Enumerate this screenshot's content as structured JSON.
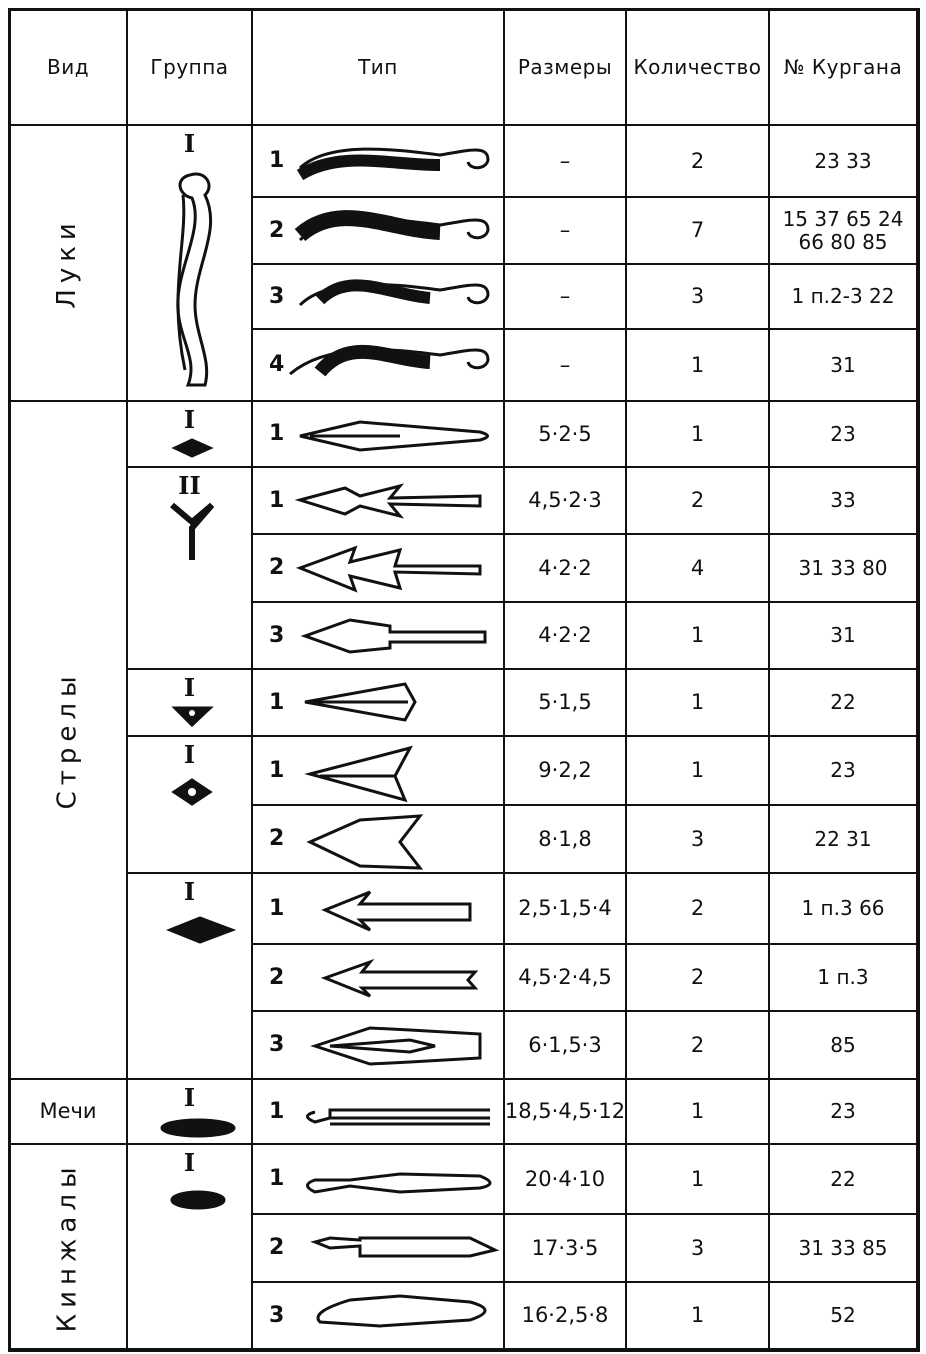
{
  "header": [
    "Вид",
    "Группа",
    "Тип",
    "Размеры",
    "Количество",
    "№ Кургана"
  ],
  "sections": [
    {
      "kind": "Луки",
      "groups": [
        {
          "label": "I",
          "types": [
            {
              "num": "1",
              "size": "–",
              "count": "2",
              "kurgan": "23 33"
            },
            {
              "num": "2",
              "size": "–",
              "count": "7",
              "kurgan": "15 37 65 24 66 80 85"
            },
            {
              "num": "3",
              "size": "–",
              "count": "3",
              "kurgan": "1 п.2-3 22"
            },
            {
              "num": "4",
              "size": "–",
              "count": "1",
              "kurgan": "31"
            }
          ]
        }
      ]
    },
    {
      "kind": "Стрелы",
      "groups": [
        {
          "label": "I",
          "types": [
            {
              "num": "1",
              "size": "5·2·5",
              "count": "1",
              "kurgan": "23"
            }
          ]
        },
        {
          "label": "II",
          "types": [
            {
              "num": "1",
              "size": "4,5·2·3",
              "count": "2",
              "kurgan": "33"
            },
            {
              "num": "2",
              "size": "4·2·2",
              "count": "4",
              "kurgan": "31 33 80"
            },
            {
              "num": "3",
              "size": "4·2·2",
              "count": "1",
              "kurgan": "31"
            }
          ]
        },
        {
          "label": "I",
          "types": [
            {
              "num": "1",
              "size": "5·1,5",
              "count": "1",
              "kurgan": "22"
            }
          ]
        },
        {
          "label": "I",
          "types": [
            {
              "num": "1",
              "size": "9·2,2",
              "count": "1",
              "kurgan": "23"
            },
            {
              "num": "2",
              "size": "8·1,8",
              "count": "3",
              "kurgan": "22 31"
            }
          ]
        },
        {
          "label": "I",
          "types": [
            {
              "num": "1",
              "size": "2,5·1,5·4",
              "count": "2",
              "kurgan": "1 п.3 66"
            },
            {
              "num": "2",
              "size": "4,5·2·4,5",
              "count": "2",
              "kurgan": "1 п.3"
            },
            {
              "num": "3",
              "size": "6·1,5·3",
              "count": "2",
              "kurgan": "85"
            }
          ]
        }
      ]
    },
    {
      "kind": "Мечи",
      "groups": [
        {
          "label": "I",
          "types": [
            {
              "num": "1",
              "size": "18,5·4,5·12",
              "count": "1",
              "kurgan": "23"
            }
          ]
        }
      ]
    },
    {
      "kind": "Кинжалы",
      "groups": [
        {
          "label": "I",
          "types": [
            {
              "num": "1",
              "size": "20·4·10",
              "count": "1",
              "kurgan": "22"
            },
            {
              "num": "2",
              "size": "17·3·5",
              "count": "3",
              "kurgan": "31 33 85"
            },
            {
              "num": "3",
              "size": "16·2,5·8",
              "count": "1",
              "kurgan": "52"
            }
          ]
        }
      ]
    }
  ]
}
